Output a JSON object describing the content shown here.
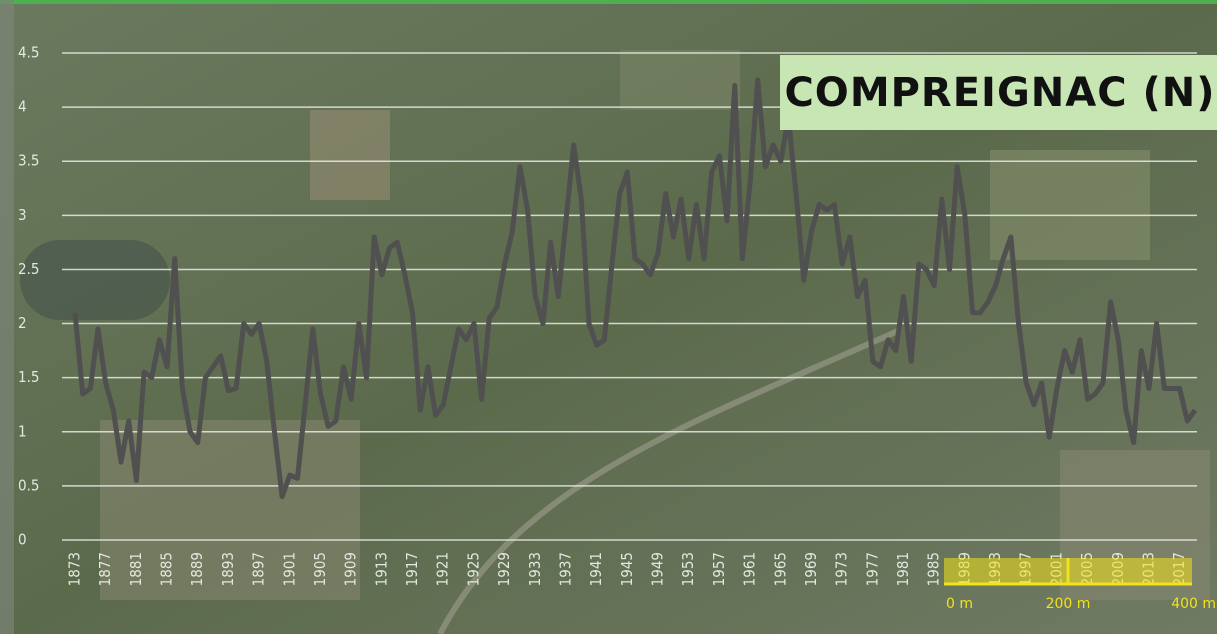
{
  "chart_data": {
    "type": "line",
    "title": "COMPREIGNAC (N)",
    "x": [
      1873,
      1874,
      1875,
      1876,
      1877,
      1878,
      1879,
      1880,
      1881,
      1882,
      1883,
      1884,
      1885,
      1886,
      1887,
      1888,
      1889,
      1890,
      1891,
      1892,
      1893,
      1894,
      1895,
      1896,
      1897,
      1898,
      1899,
      1900,
      1901,
      1902,
      1903,
      1904,
      1905,
      1906,
      1907,
      1908,
      1909,
      1910,
      1911,
      1912,
      1913,
      1914,
      1915,
      1916,
      1917,
      1918,
      1919,
      1920,
      1921,
      1922,
      1923,
      1924,
      1925,
      1926,
      1927,
      1928,
      1929,
      1930,
      1931,
      1932,
      1933,
      1934,
      1935,
      1936,
      1937,
      1938,
      1939,
      1940,
      1941,
      1942,
      1943,
      1944,
      1945,
      1946,
      1947,
      1948,
      1949,
      1950,
      1951,
      1952,
      1953,
      1954,
      1955,
      1956,
      1957,
      1958,
      1959,
      1960,
      1961,
      1962,
      1963,
      1964,
      1965,
      1966,
      1967,
      1968,
      1969,
      1970,
      1971,
      1972,
      1973,
      1974,
      1975,
      1976,
      1977,
      1978,
      1979,
      1980,
      1981,
      1982,
      1983,
      1984,
      1985,
      1986,
      1987,
      1988,
      1989,
      1990,
      1991,
      1992,
      1993,
      1994,
      1995,
      1996,
      1997,
      1998,
      1999,
      2000,
      2001,
      2002,
      2003,
      2004,
      2005,
      2006,
      2007,
      2008,
      2009,
      2010,
      2011,
      2012,
      2013,
      2014,
      2015,
      2016,
      2017,
      2018,
      2019
    ],
    "series": [
      {
        "color": "#505050",
        "values": [
          2.1,
          1.35,
          1.4,
          1.95,
          1.45,
          1.2,
          0.72,
          1.1,
          0.55,
          1.55,
          1.5,
          1.85,
          1.6,
          2.6,
          1.4,
          1.0,
          0.9,
          1.5,
          1.6,
          1.7,
          1.38,
          1.4,
          2.0,
          1.9,
          2.0,
          1.65,
          1.0,
          0.4,
          0.6,
          0.57,
          1.25,
          1.95,
          1.35,
          1.05,
          1.1,
          1.6,
          1.3,
          2.0,
          1.5,
          2.8,
          2.45,
          2.7,
          2.75,
          2.45,
          2.1,
          1.2,
          1.6,
          1.15,
          1.25,
          1.6,
          1.95,
          1.85,
          2.0,
          1.3,
          2.05,
          2.15,
          2.55,
          2.85,
          3.45,
          3.05,
          2.25,
          2.0,
          2.75,
          2.25,
          2.95,
          3.65,
          3.15,
          2.0,
          1.8,
          1.85,
          2.55,
          3.2,
          3.4,
          2.6,
          2.55,
          2.45,
          2.65,
          3.2,
          2.8,
          3.15,
          2.6,
          3.1,
          2.6,
          3.4,
          3.55,
          2.95,
          4.2,
          2.6,
          3.3,
          4.25,
          3.45,
          3.65,
          3.5,
          3.9,
          3.2,
          2.4,
          2.85,
          3.1,
          3.05,
          3.1,
          2.55,
          2.8,
          2.25,
          2.4,
          1.65,
          1.6,
          1.85,
          1.75,
          2.25,
          1.65,
          2.55,
          2.5,
          2.35,
          3.15,
          2.5,
          3.45,
          3.0,
          2.1,
          2.1,
          2.2,
          2.35,
          2.6,
          2.8,
          2.0,
          1.45,
          1.25,
          1.45,
          0.95,
          1.4,
          1.75,
          1.55,
          1.85,
          1.3,
          1.35,
          1.45,
          2.2,
          1.85,
          1.2,
          0.9,
          1.75,
          1.4,
          2.0,
          1.4,
          1.4,
          1.4,
          1.1,
          1.2
        ]
      }
    ],
    "xlim": [
      1873,
      2019
    ],
    "xticks": [
      1873,
      1877,
      1881,
      1885,
      1889,
      1893,
      1897,
      1901,
      1905,
      1909,
      1913,
      1917,
      1921,
      1925,
      1929,
      1933,
      1937,
      1941,
      1945,
      1949,
      1953,
      1957,
      1961,
      1965,
      1969,
      1973,
      1977,
      1981,
      1985,
      1989,
      1993,
      1997,
      2001,
      2005,
      2009,
      2013,
      2017
    ],
    "ylim": [
      0,
      4.5
    ],
    "yticks": [
      0,
      0.5,
      1,
      1.5,
      2,
      2.5,
      3,
      3.5,
      4,
      4.5
    ],
    "grid": true
  },
  "scale_bar": {
    "labels": [
      "0 m",
      "200 m",
      "400 m"
    ]
  }
}
